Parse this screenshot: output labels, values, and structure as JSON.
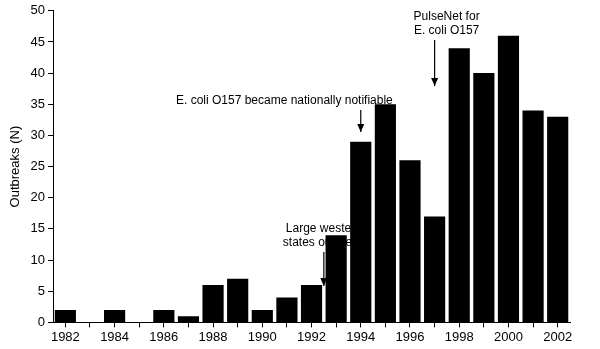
{
  "chart_data": {
    "type": "bar",
    "y_label": "Outbreaks (N)",
    "categories": [
      "1982",
      null,
      "1984",
      null,
      "1986",
      null,
      "1988",
      null,
      "1990",
      null,
      "1992",
      null,
      "1994",
      null,
      "1996",
      null,
      "1998",
      null,
      "2000",
      null,
      "2002"
    ],
    "values": [
      2,
      0,
      2,
      0,
      2,
      1,
      6,
      7,
      2,
      4,
      6,
      14,
      29,
      35,
      26,
      17,
      44,
      40,
      46,
      34,
      33
    ],
    "color": "#000000",
    "ylim": [
      0,
      50
    ],
    "yticks": [
      0,
      5,
      10,
      15,
      20,
      25,
      30,
      35,
      40,
      45,
      50
    ],
    "grid": false,
    "annotations": [
      {
        "text": [
          "Large western",
          "states outbreak"
        ],
        "x": 1992.5
      },
      {
        "text": [
          "E. coli O157 became nationally notifiable"
        ],
        "x": 1994
      },
      {
        "text": [
          "PulseNet for",
          "E. coli O157"
        ],
        "x": 1997
      }
    ]
  }
}
